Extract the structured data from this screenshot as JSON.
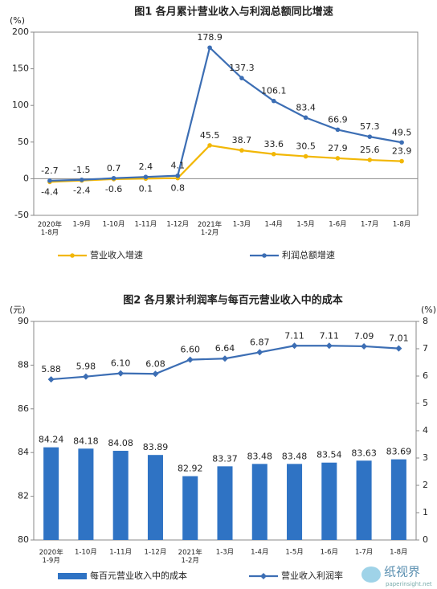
{
  "chart_data": [
    {
      "type": "line",
      "title": "图1  各月累计营业收入与利润总额同比增速",
      "y_unit": "(%)",
      "categories": [
        "2020年\n1-8月",
        "1-9月",
        "1-10月",
        "1-11月",
        "1-12月",
        "2021年\n1-2月",
        "1-3月",
        "1-4月",
        "1-5月",
        "1-6月",
        "1-7月",
        "1-8月"
      ],
      "series": [
        {
          "name": "营业收入增速",
          "color": "#f2b705",
          "values": [
            -4.4,
            -2.4,
            -0.6,
            0.1,
            0.8,
            45.5,
            38.7,
            33.6,
            30.5,
            27.9,
            25.6,
            23.9
          ]
        },
        {
          "name": "利润总额增速",
          "color": "#3c6eb4",
          "values": [
            -2.7,
            -1.5,
            0.7,
            2.4,
            4.1,
            178.9,
            137.3,
            106.1,
            83.4,
            66.9,
            57.3,
            49.5
          ]
        }
      ],
      "ylim": [
        -50,
        200
      ],
      "yticks": [
        -50,
        0,
        50,
        100,
        150,
        200
      ],
      "grid": false,
      "legend": "bottom"
    },
    {
      "type": "bar_line",
      "title": "图2  各月累计利润率与每百元营业收入中的成本",
      "y_unit": "(元)",
      "y2_unit": "(%)",
      "categories": [
        "2020年\n1-9月",
        "1-10月",
        "1-11月",
        "1-12月",
        "2021年\n1-2月",
        "1-3月",
        "1-4月",
        "1-5月",
        "1-6月",
        "1-7月",
        "1-8月"
      ],
      "series": [
        {
          "name": "每百元营业收入中的成本",
          "type": "bar",
          "color": "#2f73c4",
          "values": [
            84.24,
            84.18,
            84.08,
            83.89,
            82.92,
            83.37,
            83.48,
            83.48,
            83.54,
            83.63,
            83.69
          ]
        },
        {
          "name": "营业收入利润率",
          "type": "line",
          "axis": "y2",
          "color": "#3c6eb4",
          "values": [
            5.88,
            5.98,
            6.1,
            6.08,
            6.6,
            6.64,
            6.87,
            7.11,
            7.11,
            7.09,
            7.01
          ],
          "value_labels": [
            "5.88",
            "5.98",
            "6.10",
            "6.08",
            "6.60",
            "6.64",
            "6.87",
            "7.11",
            "7.11",
            "7.09",
            "7.01"
          ]
        }
      ],
      "ylim": [
        80,
        90
      ],
      "yticks": [
        80,
        82,
        84,
        86,
        88,
        90
      ],
      "y2lim": [
        0,
        8
      ],
      "y2ticks": [
        0,
        1,
        2,
        3,
        4,
        5,
        6,
        7,
        8
      ],
      "grid": false,
      "legend": "bottom"
    }
  ],
  "watermark": {
    "name": "纸视界",
    "url": "paperinsight.net"
  }
}
